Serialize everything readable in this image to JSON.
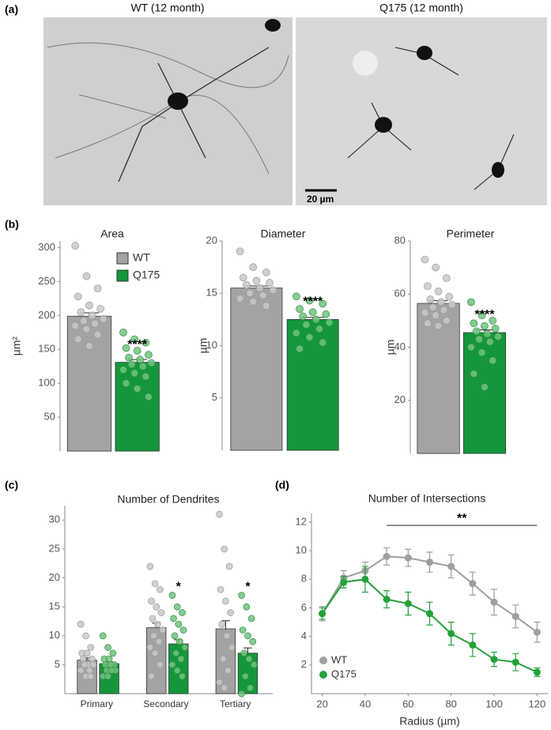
{
  "panel_labels": [
    "(a)",
    "(b)",
    "(c)",
    "(d)"
  ],
  "images": [
    {
      "title": "WT (12 month)"
    },
    {
      "title": "Q175 (12 month)",
      "scale_bar": "20 µm"
    }
  ],
  "chart_data": [
    {
      "type": "bar",
      "title": "Area",
      "y_label": "µm²",
      "categories": [
        null
      ],
      "ylim": [
        0,
        310
      ],
      "yticks": [
        50,
        100,
        150,
        200,
        250,
        300
      ],
      "legend": "top-right",
      "annotations": [
        "****"
      ],
      "series": [
        {
          "name": "WT",
          "color": "#a3a3a3",
          "values": [
            199
          ],
          "errors": [
            5
          ],
          "points": [
            [
              303,
              258,
              240,
              228,
              215,
              210,
              205,
              200,
              195,
              192,
              188,
              185,
              180,
              172,
              165,
              155
            ]
          ]
        },
        {
          "name": "Q175",
          "color": "#13973a",
          "values": [
            131
          ],
          "errors": [
            4
          ],
          "points": [
            [
              175,
              165,
              160,
              152,
              148,
              142,
              138,
              135,
              130,
              128,
              125,
              120,
              115,
              110,
              100,
              92,
              80
            ]
          ]
        }
      ]
    },
    {
      "type": "bar",
      "title": "Diameter",
      "y_label": "µm",
      "categories": [
        null
      ],
      "ylim": [
        0,
        20
      ],
      "yticks": [
        5,
        10,
        15,
        20
      ],
      "annotations": [
        "****"
      ],
      "series": [
        {
          "color": "#a3a3a3",
          "values": [
            15.5
          ],
          "errors": [
            0.2
          ],
          "points": [
            [
              19,
              17.5,
              17,
              16.5,
              16.2,
              16,
              15.8,
              15.5,
              15.3,
              15,
              14.8,
              14.5,
              14.2,
              13.8
            ]
          ]
        },
        {
          "color": "#13973a",
          "values": [
            12.5
          ],
          "errors": [
            0.2
          ],
          "points": [
            [
              14.7,
              14.3,
              14,
              13.5,
              13.2,
              13,
              12.8,
              12.5,
              12.2,
              12,
              11.6,
              11.2,
              10.8,
              10.3,
              9.7
            ]
          ]
        }
      ]
    },
    {
      "type": "bar",
      "title": "Perimeter",
      "y_label": "µm",
      "categories": [
        null
      ],
      "ylim": [
        0,
        80
      ],
      "yticks": [
        20,
        40,
        60,
        80
      ],
      "annotations": [
        "****"
      ],
      "series": [
        {
          "color": "#a3a3a3",
          "values": [
            56.5
          ],
          "errors": [
            1
          ],
          "points": [
            [
              73,
              70,
              66,
              63,
              61,
              59,
              58,
              57,
              56,
              55,
              54,
              53,
              52,
              50,
              49,
              48
            ]
          ]
        },
        {
          "color": "#13973a",
          "values": [
            45.5
          ],
          "errors": [
            1
          ],
          "points": [
            [
              57,
              52,
              50,
              49,
              48,
              47,
              46,
              45,
              44,
              43,
              42,
              40,
              38,
              35,
              30,
              25
            ]
          ]
        }
      ]
    },
    {
      "type": "bar",
      "title": "Number of Dendrites",
      "categories": [
        "Primary",
        "Secondary",
        "Tertiary"
      ],
      "ylim": [
        0,
        32.5
      ],
      "yticks": [
        5,
        10,
        15,
        20,
        25,
        30
      ],
      "annotations": [
        null,
        "*",
        "*"
      ],
      "series": [
        {
          "color": "#a3a3a3",
          "values": [
            5.8,
            11.4,
            11.2
          ],
          "errors": [
            0.4,
            0.8,
            1.4
          ],
          "points": [
            [
              12,
              10,
              8,
              7,
              7,
              6,
              6,
              5,
              5,
              5,
              4,
              4,
              3,
              3
            ],
            [
              22,
              19,
              18,
              16,
              15,
              14,
              13,
              12,
              11,
              10,
              9,
              8,
              7,
              5,
              3
            ],
            [
              31,
              25,
              22,
              18,
              16,
              14,
              12,
              10,
              8,
              6,
              4,
              2,
              1
            ]
          ]
        },
        {
          "color": "#13973a",
          "values": [
            5.2,
            8.6,
            7.0
          ],
          "errors": [
            0.3,
            0.7,
            0.9
          ],
          "points": [
            [
              10,
              8,
              7,
              6,
              6,
              5,
              5,
              5,
              4,
              4,
              4,
              3,
              3
            ],
            [
              17,
              15,
              14,
              13,
              12,
              11,
              10,
              9,
              8,
              7,
              6,
              5,
              4,
              3
            ],
            [
              17,
              15,
              13,
              11,
              10,
              9,
              7,
              6,
              5,
              3,
              1,
              0
            ]
          ]
        }
      ]
    },
    {
      "type": "line",
      "title": "Number of Intersections",
      "x_label": "Radius (µm)",
      "x": [
        20,
        30,
        40,
        50,
        60,
        70,
        80,
        90,
        100,
        110,
        120
      ],
      "xlim": [
        15,
        125
      ],
      "xticks": [
        20,
        40,
        60,
        80,
        100,
        120
      ],
      "ylim": [
        0,
        12.6
      ],
      "yticks": [
        2,
        4,
        6,
        8,
        10,
        12
      ],
      "legend": "bottom-left",
      "significance": {
        "text": "**",
        "x": [
          50,
          120
        ]
      },
      "series": [
        {
          "name": "WT",
          "color": "#9e9e9e",
          "values": [
            5.6,
            8.1,
            8.6,
            9.6,
            9.5,
            9.2,
            8.9,
            7.7,
            6.4,
            5.4,
            4.3
          ],
          "errors": [
            0.5,
            0.5,
            0.6,
            0.6,
            0.6,
            0.7,
            0.8,
            0.8,
            0.9,
            0.8,
            0.7
          ]
        },
        {
          "name": "Q175",
          "color": "#22a23a",
          "values": [
            5.6,
            7.8,
            8.0,
            6.6,
            6.3,
            5.6,
            4.2,
            3.4,
            2.4,
            2.2,
            1.5
          ],
          "errors": [
            0.4,
            0.4,
            0.9,
            0.6,
            0.8,
            0.8,
            0.8,
            0.8,
            0.5,
            0.6,
            0.3
          ]
        }
      ]
    }
  ]
}
